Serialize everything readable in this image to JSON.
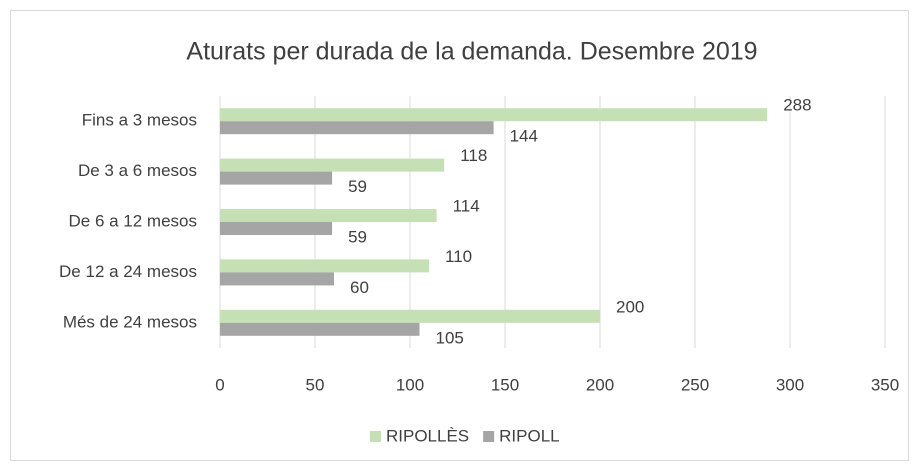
{
  "chart_data": {
    "type": "bar",
    "orientation": "horizontal",
    "title": "Aturats per durada de la demanda. Desembre 2019",
    "categories": [
      "Fins a 3 mesos",
      "De 3 a 6 mesos",
      "De 6 a 12 mesos",
      "De 12 a 24 mesos",
      "Més de 24 mesos"
    ],
    "series": [
      {
        "name": "RIPOLLÈS",
        "color": "#c5e0b4",
        "values": [
          288,
          118,
          114,
          110,
          200
        ]
      },
      {
        "name": "RIPOLL",
        "color": "#a5a5a5",
        "values": [
          144,
          59,
          59,
          60,
          105
        ]
      }
    ],
    "xlim": [
      0,
      350
    ],
    "xticks": [
      0,
      50,
      100,
      150,
      200,
      250,
      300,
      350
    ],
    "grid": true,
    "legend": "bottom"
  }
}
